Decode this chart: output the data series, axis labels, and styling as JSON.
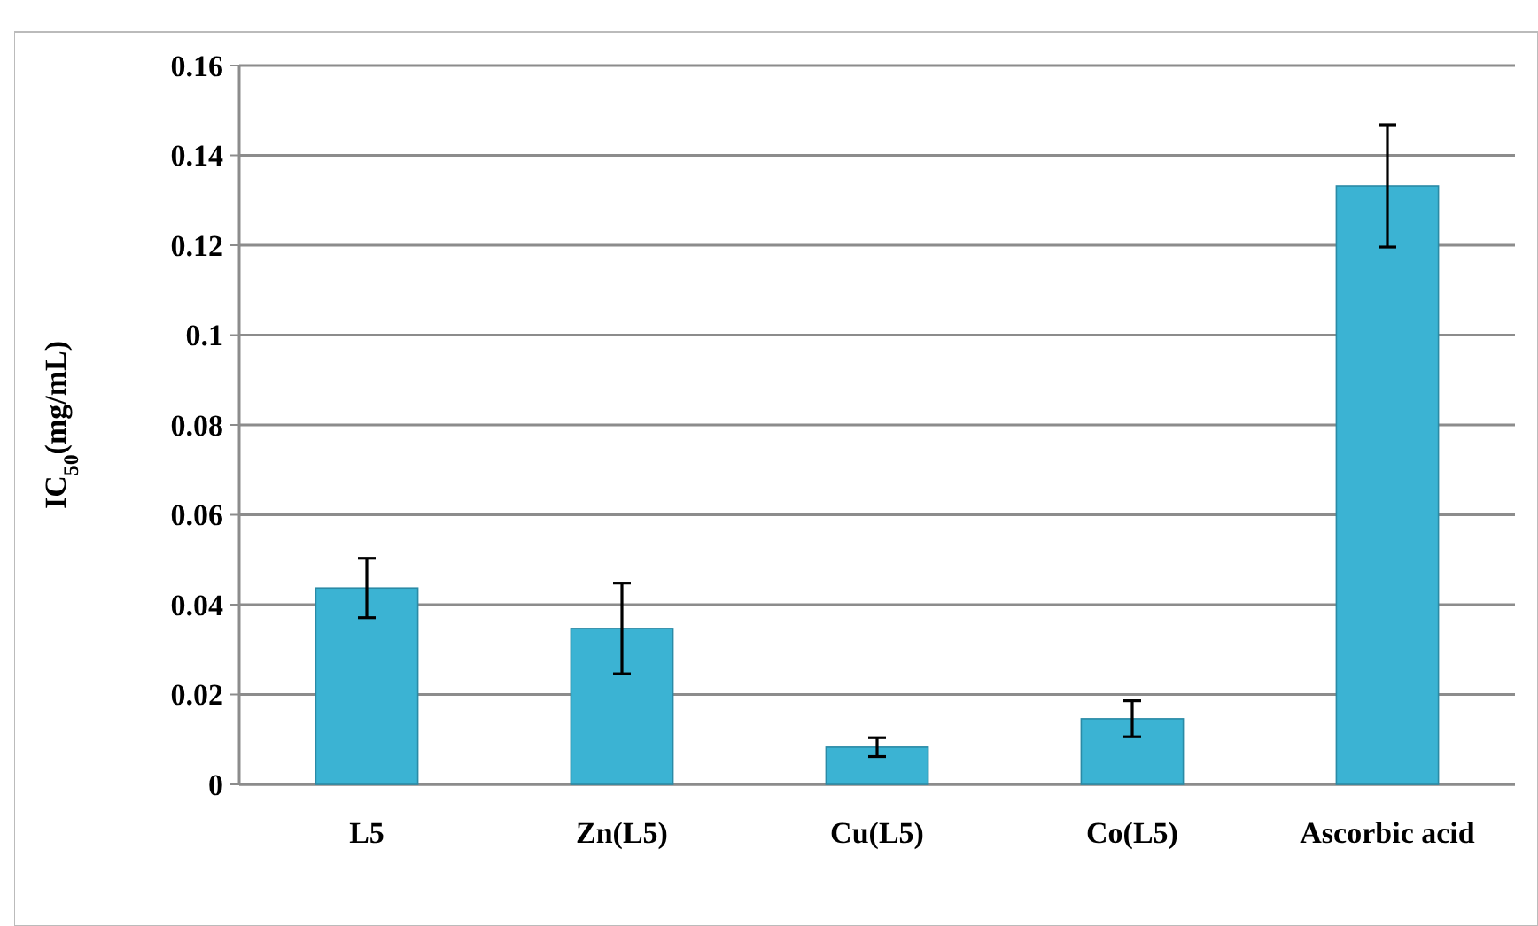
{
  "chart_data": {
    "type": "bar",
    "ylabel": "IC$_{50}$(mg/mL)",
    "categories": [
      "L5",
      "Zn(L5)",
      "Cu(L5)",
      "Co(L5)",
      "Ascorbic acid"
    ],
    "values": [
      0.0437,
      0.0347,
      0.0083,
      0.0146,
      0.1332
    ],
    "errors": [
      0.0066,
      0.0101,
      0.0021,
      0.004,
      0.0136
    ],
    "color": "#3bb3d3",
    "ylim": [
      0,
      0.16
    ],
    "yticks": [
      0,
      0.02,
      0.04,
      0.06,
      0.08,
      0.1,
      0.12,
      0.14,
      0.16
    ],
    "grid": "y"
  }
}
